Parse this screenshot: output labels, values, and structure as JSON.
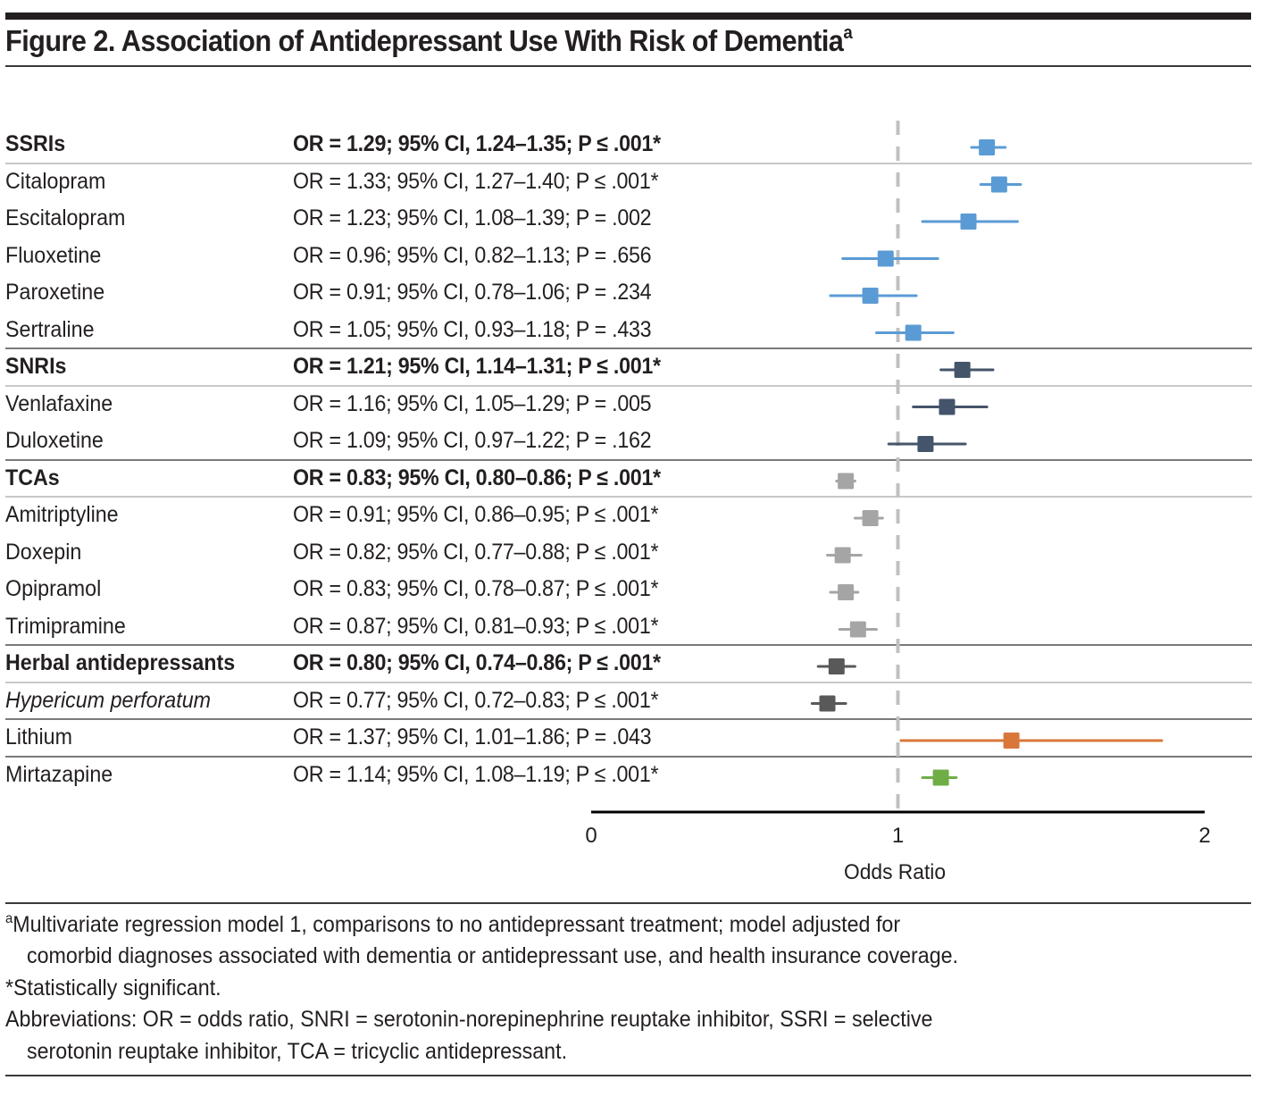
{
  "figure": {
    "title": "Figure 2. Association of Antidepressant Use With Risk of Dementia",
    "title_superscript": "a"
  },
  "chart_data": {
    "type": "forest",
    "title": "Figure 2. Association of Antidepressant Use With Risk of Dementia",
    "xlabel": "Odds Ratio",
    "xlim": [
      0,
      2
    ],
    "x_ticks": [
      "0",
      "1",
      "2"
    ],
    "reference_line": 1,
    "grid": false,
    "rows": [
      {
        "label": "SSRIs",
        "stats": "OR = 1.29; 95% CI, 1.24–1.35; P ≤ .001*",
        "or": 1.29,
        "ci_low": 1.24,
        "ci_high": 1.35,
        "p": "≤ .001",
        "significant": true,
        "bold": true,
        "italic": false,
        "group": "SSRI",
        "color": "#5b9bd5",
        "sep_after": "light"
      },
      {
        "label": "Citalopram",
        "stats": "OR = 1.33; 95% CI, 1.27–1.40; P ≤ .001*",
        "or": 1.33,
        "ci_low": 1.27,
        "ci_high": 1.4,
        "p": "≤ .001",
        "significant": true,
        "bold": false,
        "italic": false,
        "group": "SSRI",
        "color": "#5b9bd5",
        "sep_after": ""
      },
      {
        "label": "Escitalopram",
        "stats": "OR = 1.23; 95% CI, 1.08–1.39; P = .002",
        "or": 1.23,
        "ci_low": 1.08,
        "ci_high": 1.39,
        "p": "= .002",
        "significant": false,
        "bold": false,
        "italic": false,
        "group": "SSRI",
        "color": "#5b9bd5",
        "sep_after": ""
      },
      {
        "label": "Fluoxetine",
        "stats": "OR = 0.96; 95% CI, 0.82–1.13; P = .656",
        "or": 0.96,
        "ci_low": 0.82,
        "ci_high": 1.13,
        "p": "= .656",
        "significant": false,
        "bold": false,
        "italic": false,
        "group": "SSRI",
        "color": "#5b9bd5",
        "sep_after": ""
      },
      {
        "label": "Paroxetine",
        "stats": "OR = 0.91; 95% CI, 0.78–1.06; P = .234",
        "or": 0.91,
        "ci_low": 0.78,
        "ci_high": 1.06,
        "p": "= .234",
        "significant": false,
        "bold": false,
        "italic": false,
        "group": "SSRI",
        "color": "#5b9bd5",
        "sep_after": ""
      },
      {
        "label": "Sertraline",
        "stats": "OR = 1.05; 95% CI, 0.93–1.18; P = .433",
        "or": 1.05,
        "ci_low": 0.93,
        "ci_high": 1.18,
        "p": "= .433",
        "significant": false,
        "bold": false,
        "italic": false,
        "group": "SSRI",
        "color": "#5b9bd5",
        "sep_after": "dark"
      },
      {
        "label": "SNRIs",
        "stats": "OR = 1.21; 95% CI, 1.14–1.31; P ≤ .001*",
        "or": 1.21,
        "ci_low": 1.14,
        "ci_high": 1.31,
        "p": "≤ .001",
        "significant": true,
        "bold": true,
        "italic": false,
        "group": "SNRI",
        "color": "#44546a",
        "sep_after": "light"
      },
      {
        "label": "Venlafaxine",
        "stats": "OR = 1.16; 95% CI, 1.05–1.29; P = .005",
        "or": 1.16,
        "ci_low": 1.05,
        "ci_high": 1.29,
        "p": "= .005",
        "significant": false,
        "bold": false,
        "italic": false,
        "group": "SNRI",
        "color": "#44546a",
        "sep_after": ""
      },
      {
        "label": "Duloxetine",
        "stats": "OR = 1.09; 95% CI, 0.97–1.22; P = .162",
        "or": 1.09,
        "ci_low": 0.97,
        "ci_high": 1.22,
        "p": "= .162",
        "significant": false,
        "bold": false,
        "italic": false,
        "group": "SNRI",
        "color": "#44546a",
        "sep_after": "dark"
      },
      {
        "label": "TCAs",
        "stats": "OR = 0.83; 95% CI, 0.80–0.86; P ≤ .001*",
        "or": 0.83,
        "ci_low": 0.8,
        "ci_high": 0.86,
        "p": "≤ .001",
        "significant": true,
        "bold": true,
        "italic": false,
        "group": "TCA",
        "color": "#a5a5a5",
        "sep_after": "light"
      },
      {
        "label": "Amitriptyline",
        "stats": "OR = 0.91; 95% CI, 0.86–0.95; P ≤ .001*",
        "or": 0.91,
        "ci_low": 0.86,
        "ci_high": 0.95,
        "p": "≤ .001",
        "significant": true,
        "bold": false,
        "italic": false,
        "group": "TCA",
        "color": "#a5a5a5",
        "sep_after": ""
      },
      {
        "label": "Doxepin",
        "stats": "OR = 0.82; 95% CI, 0.77–0.88; P ≤ .001*",
        "or": 0.82,
        "ci_low": 0.77,
        "ci_high": 0.88,
        "p": "≤ .001",
        "significant": true,
        "bold": false,
        "italic": false,
        "group": "TCA",
        "color": "#a5a5a5",
        "sep_after": ""
      },
      {
        "label": "Opipramol",
        "stats": "OR = 0.83; 95% CI, 0.78–0.87; P ≤ .001*",
        "or": 0.83,
        "ci_low": 0.78,
        "ci_high": 0.87,
        "p": "≤ .001",
        "significant": true,
        "bold": false,
        "italic": false,
        "group": "TCA",
        "color": "#a5a5a5",
        "sep_after": ""
      },
      {
        "label": "Trimipramine",
        "stats": "OR = 0.87; 95% CI, 0.81–0.93; P ≤ .001*",
        "or": 0.87,
        "ci_low": 0.81,
        "ci_high": 0.93,
        "p": "≤ .001",
        "significant": true,
        "bold": false,
        "italic": false,
        "group": "TCA",
        "color": "#a5a5a5",
        "sep_after": "dark"
      },
      {
        "label": "Herbal antidepressants",
        "stats": "OR = 0.80; 95% CI, 0.74–0.86; P ≤ .001*",
        "or": 0.8,
        "ci_low": 0.74,
        "ci_high": 0.86,
        "p": "≤ .001",
        "significant": true,
        "bold": true,
        "italic": false,
        "group": "Herbal",
        "color": "#595959",
        "sep_after": "light"
      },
      {
        "label": "Hypericum perforatum",
        "stats": "OR = 0.77; 95% CI, 0.72–0.83; P ≤ .001*",
        "or": 0.77,
        "ci_low": 0.72,
        "ci_high": 0.83,
        "p": "≤ .001",
        "significant": true,
        "bold": false,
        "italic": true,
        "group": "Herbal",
        "color": "#595959",
        "sep_after": "dark"
      },
      {
        "label": "Lithium",
        "stats": "OR = 1.37; 95% CI, 1.01–1.86; P = .043",
        "or": 1.37,
        "ci_low": 1.01,
        "ci_high": 1.86,
        "p": "= .043",
        "significant": false,
        "bold": false,
        "italic": false,
        "group": "Lithium",
        "color": "#d9773a",
        "sep_after": "dark"
      },
      {
        "label": "Mirtazapine",
        "stats": "OR = 1.14; 95% CI, 1.08–1.19; P ≤ .001*",
        "or": 1.14,
        "ci_low": 1.08,
        "ci_high": 1.19,
        "p": "≤ .001",
        "significant": true,
        "bold": false,
        "italic": false,
        "group": "Mirtazapine",
        "color": "#70ad47",
        "sep_after": ""
      }
    ]
  },
  "footnotes": {
    "a_marker": "a",
    "a_line1": "Multivariate regression model 1, comparisons to no antidepressant treatment; model adjusted for",
    "a_line2": "comorbid diagnoses associated with dementia or antidepressant use, and health insurance coverage.",
    "significance": "*Statistically significant.",
    "abbrev_line1": "Abbreviations: OR = odds ratio, SNRI = serotonin-norepinephrine reuptake inhibitor, SSRI = selective",
    "abbrev_line2": "serotonin reuptake inhibitor, TCA = tricyclic antidepressant."
  },
  "colors": {
    "ssri": "#5b9bd5",
    "snri": "#44546a",
    "tca": "#a5a5a5",
    "herbal": "#595959",
    "lithium": "#d9773a",
    "mirtazapine": "#70ad47",
    "reference_line": "#c0c0c0"
  }
}
